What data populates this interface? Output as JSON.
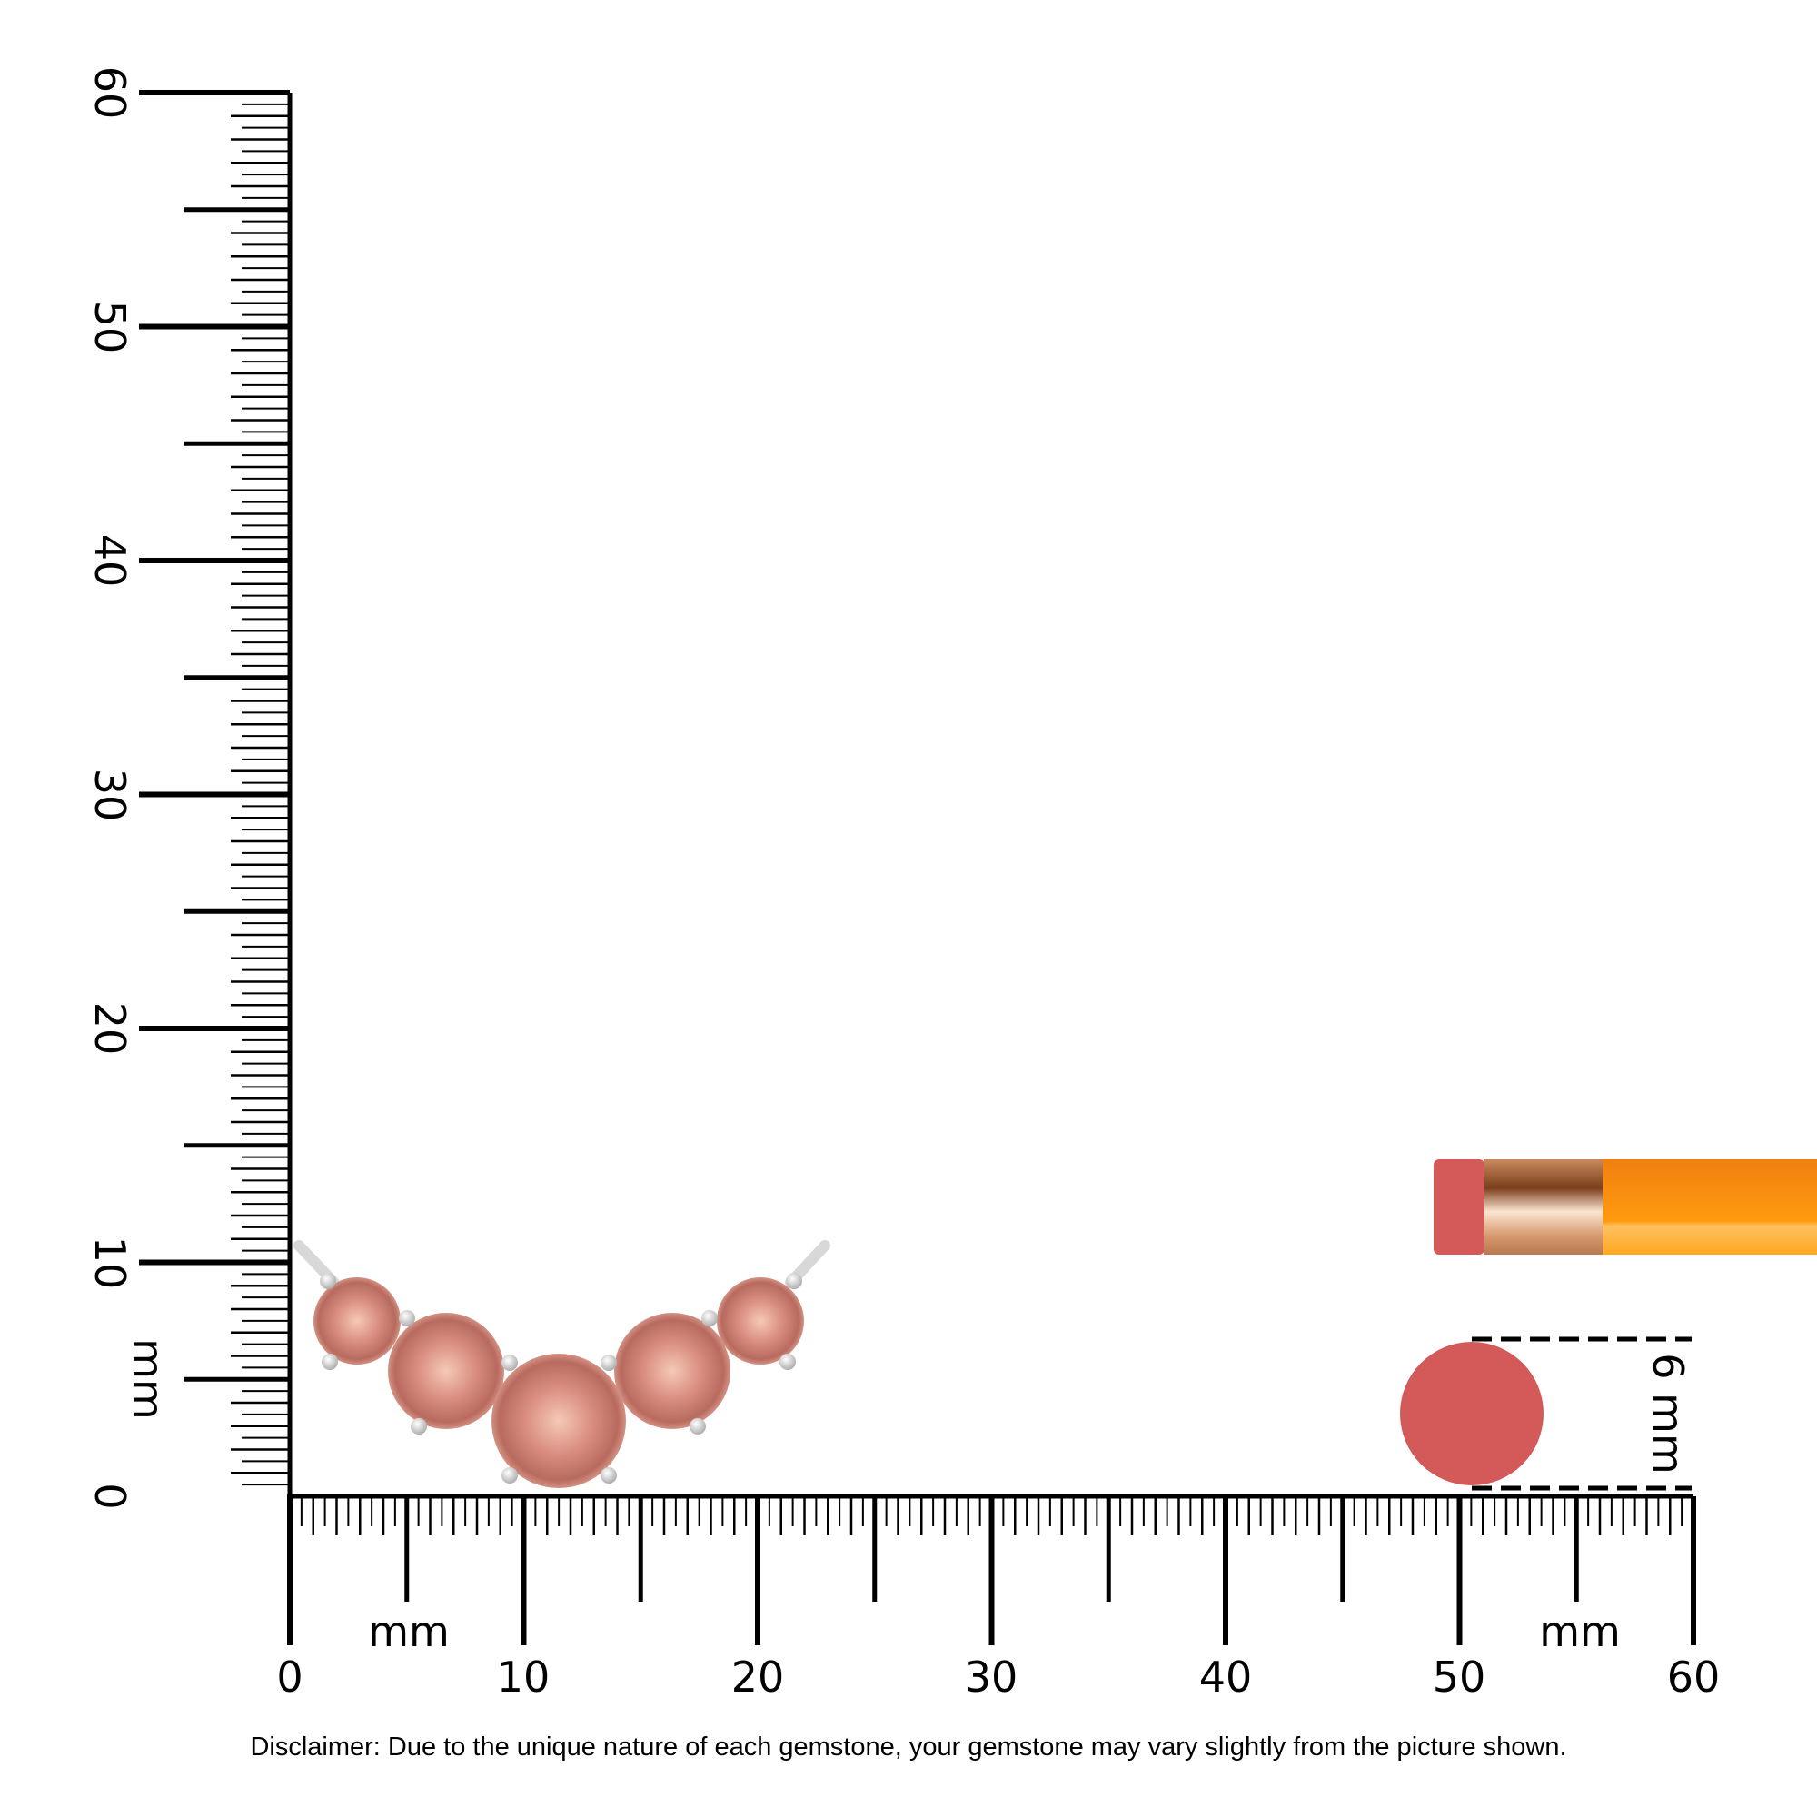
{
  "vertical_ruler": {
    "labels": [
      "0",
      "10",
      "20",
      "30",
      "40",
      "50",
      "60"
    ],
    "unit": "mm",
    "range_mm": [
      0,
      60
    ]
  },
  "horizontal_ruler": {
    "labels": [
      "0",
      "10",
      "20",
      "30",
      "40",
      "50",
      "60"
    ],
    "unit_left": "mm",
    "unit_right": "mm",
    "range_mm": [
      0,
      60
    ]
  },
  "reference": {
    "size_label": "6 mm",
    "eraser_color": "#d45a5a",
    "pencil_color": "#ff9a10"
  },
  "product": {
    "stone_color": "#d9958a",
    "metal_color": "#d8d8d8",
    "stone_count": 5
  },
  "disclaimer": "Disclaimer: Due to the unique nature of each gemstone, your gemstone may vary slightly from the picture shown."
}
